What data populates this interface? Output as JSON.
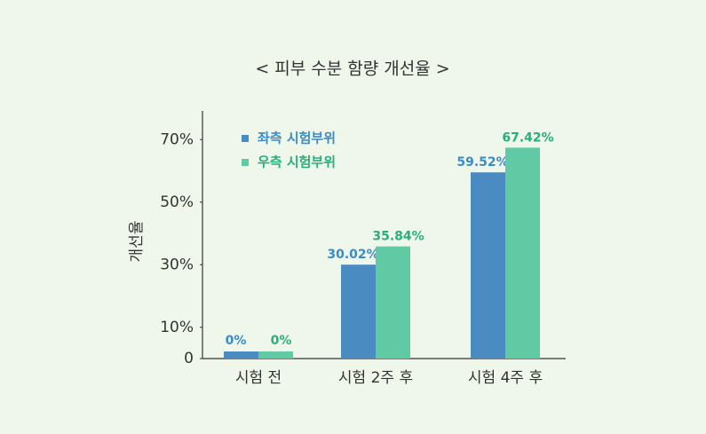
{
  "chart_data": {
    "type": "bar",
    "title": "< 피부 수분 함량 개선율 >",
    "y_label": "개선율",
    "categories": [
      "시험 전",
      "시험 2주 후",
      "시험 4주 후"
    ],
    "series": [
      {
        "name": "좌측 시험부위",
        "color": "#4a8bc2",
        "label_color": "#3a8ccb",
        "values": [
          0,
          30.02,
          59.52
        ],
        "value_labels": [
          "0%",
          "30.02%",
          "59.52%"
        ]
      },
      {
        "name": "우측 시험부위",
        "color": "#5fcaa4",
        "label_color": "#2aae7c",
        "values": [
          0,
          35.84,
          67.42
        ],
        "value_labels": [
          "0%",
          "35.84%",
          "67.42%"
        ]
      }
    ],
    "ylim": [
      0,
      80
    ],
    "yticks": [
      0,
      {
        "value": 10,
        "label": "10%"
      },
      {
        "value": 30,
        "label": "30%"
      },
      {
        "value": 50,
        "label": "50%"
      },
      {
        "value": 70,
        "label": "70%"
      }
    ],
    "legend": "upper left"
  }
}
